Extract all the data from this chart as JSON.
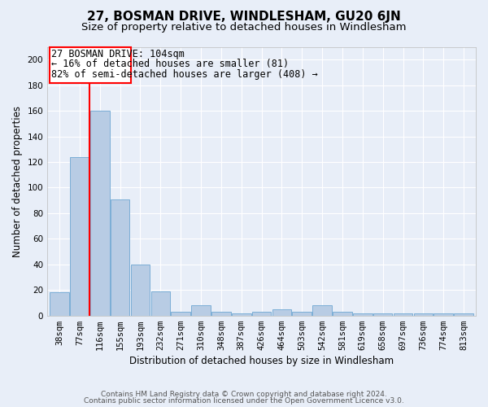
{
  "title": "27, BOSMAN DRIVE, WINDLESHAM, GU20 6JN",
  "subtitle": "Size of property relative to detached houses in Windlesham",
  "xlabel": "Distribution of detached houses by size in Windlesham",
  "ylabel": "Number of detached properties",
  "categories": [
    "38sqm",
    "77sqm",
    "116sqm",
    "155sqm",
    "193sqm",
    "232sqm",
    "271sqm",
    "310sqm",
    "348sqm",
    "387sqm",
    "426sqm",
    "464sqm",
    "503sqm",
    "542sqm",
    "581sqm",
    "619sqm",
    "658sqm",
    "697sqm",
    "736sqm",
    "774sqm",
    "813sqm"
  ],
  "values": [
    18,
    124,
    160,
    91,
    40,
    19,
    3,
    8,
    3,
    2,
    3,
    5,
    3,
    8,
    3,
    2,
    2,
    2,
    2,
    2,
    2
  ],
  "bar_color": "#b8cce4",
  "bar_edge_color": "#7baed6",
  "property_label": "27 BOSMAN DRIVE: 104sqm",
  "annotation_line1": "← 16% of detached houses are smaller (81)",
  "annotation_line2": "82% of semi-detached houses are larger (408) →",
  "ylim": [
    0,
    210
  ],
  "yticks": [
    0,
    20,
    40,
    60,
    80,
    100,
    120,
    140,
    160,
    180,
    200
  ],
  "bg_color": "#e8eef8",
  "grid_color": "#ffffff",
  "plot_bg_color": "#dde6f5",
  "footer_line1": "Contains HM Land Registry data © Crown copyright and database right 2024.",
  "footer_line2": "Contains public sector information licensed under the Open Government Licence v3.0.",
  "title_fontsize": 11,
  "subtitle_fontsize": 9.5,
  "axis_label_fontsize": 8.5,
  "tick_fontsize": 7.5,
  "annotation_fontsize": 8.5,
  "footer_fontsize": 6.5,
  "red_line_x": 1.5
}
